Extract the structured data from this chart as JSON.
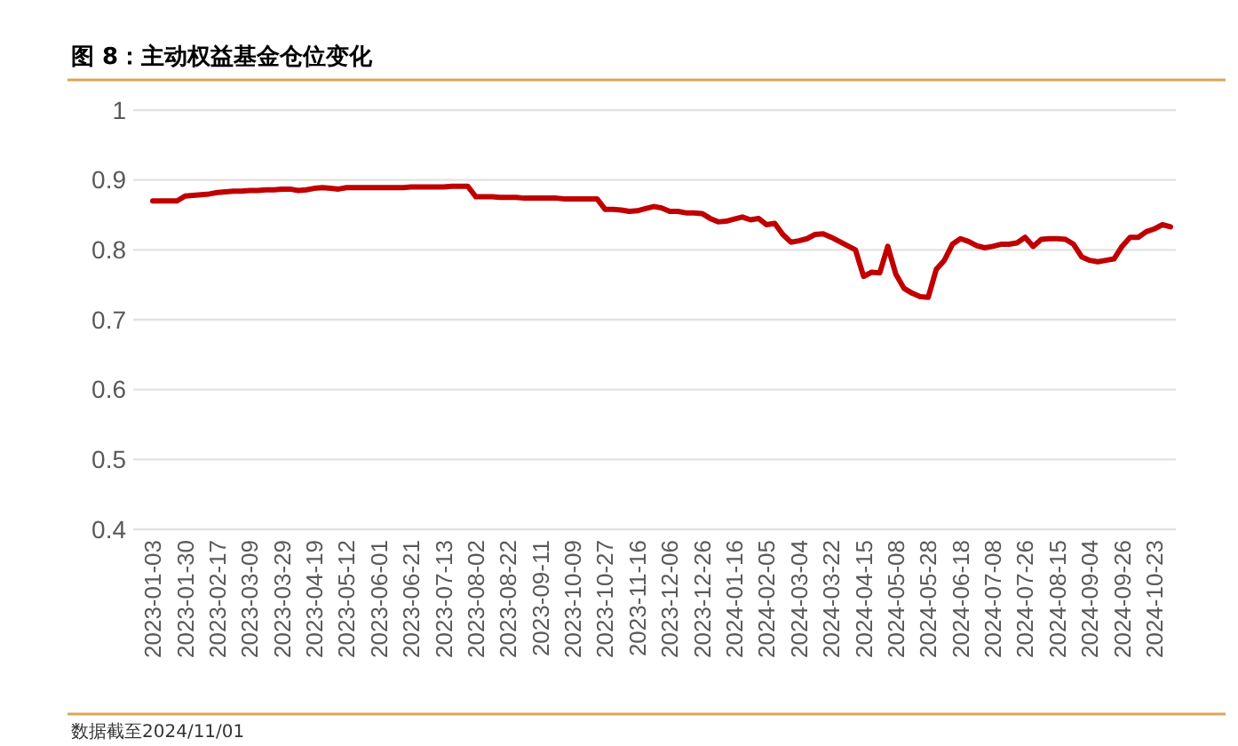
{
  "chart_data": {
    "type": "line",
    "title": "图 8：主动权益基金仓位变化",
    "annotations": [
      "数据截至2024/11/01"
    ],
    "categories": [
      "2023-01-03",
      null,
      null,
      null,
      "2023-01-30",
      null,
      null,
      null,
      "2023-02-17",
      null,
      null,
      null,
      "2023-03-09",
      null,
      null,
      null,
      "2023-03-29",
      null,
      null,
      null,
      "2023-04-19",
      null,
      null,
      null,
      "2023-05-12",
      null,
      null,
      null,
      "2023-06-01",
      null,
      null,
      null,
      "2023-06-21",
      null,
      null,
      null,
      "2023-07-13",
      null,
      null,
      null,
      "2023-08-02",
      null,
      null,
      null,
      "2023-08-22",
      null,
      null,
      null,
      "2023-09-11",
      null,
      null,
      null,
      "2023-10-09",
      null,
      null,
      null,
      "2023-10-27",
      null,
      null,
      null,
      "2023-11-16",
      null,
      null,
      null,
      "2023-12-06",
      null,
      null,
      null,
      "2023-12-26",
      null,
      null,
      null,
      "2024-01-16",
      null,
      null,
      null,
      "2024-02-05",
      null,
      null,
      null,
      "2024-03-04",
      null,
      null,
      null,
      "2024-03-22",
      null,
      null,
      null,
      "2024-04-15",
      null,
      null,
      null,
      "2024-05-08",
      null,
      null,
      null,
      "2024-05-28",
      null,
      null,
      null,
      "2024-06-18",
      null,
      null,
      null,
      "2024-07-08",
      null,
      null,
      null,
      "2024-07-26",
      null,
      null,
      null,
      "2024-08-15",
      null,
      null,
      null,
      "2024-09-04",
      null,
      null,
      null,
      "2024-09-26",
      null,
      null,
      null,
      "2024-10-23",
      null,
      null
    ],
    "series": [
      {
        "color": "#c00000",
        "values": [
          0.87,
          0.87,
          0.87,
          0.87,
          0.877,
          0.878,
          0.879,
          0.88,
          0.882,
          0.883,
          0.884,
          0.884,
          0.885,
          0.885,
          0.886,
          0.886,
          0.887,
          0.887,
          0.885,
          0.886,
          0.888,
          0.889,
          0.888,
          0.887,
          0.889,
          0.889,
          0.889,
          0.889,
          0.889,
          0.889,
          0.889,
          0.889,
          0.89,
          0.89,
          0.89,
          0.89,
          0.89,
          0.891,
          0.891,
          0.891,
          0.876,
          0.876,
          0.876,
          0.875,
          0.875,
          0.875,
          0.874,
          0.874,
          0.874,
          0.874,
          0.874,
          0.873,
          0.873,
          0.873,
          0.873,
          0.873,
          0.858,
          0.858,
          0.857,
          0.855,
          0.856,
          0.859,
          0.862,
          0.86,
          0.855,
          0.855,
          0.853,
          0.853,
          0.852,
          0.845,
          0.84,
          0.841,
          0.844,
          0.847,
          0.843,
          0.845,
          0.836,
          0.838,
          0.822,
          0.811,
          0.813,
          0.816,
          0.822,
          0.823,
          0.818,
          0.812,
          0.806,
          0.8,
          0.762,
          0.768,
          0.767,
          0.805,
          0.765,
          0.745,
          0.738,
          0.733,
          0.732,
          0.772,
          0.785,
          0.808,
          0.816,
          0.812,
          0.806,
          0.803,
          0.805,
          0.808,
          0.808,
          0.81,
          0.818,
          0.805,
          0.815,
          0.816,
          0.816,
          0.815,
          0.808,
          0.79,
          0.785,
          0.783,
          0.785,
          0.787,
          0.805,
          0.818,
          0.818,
          0.826,
          0.83,
          0.836,
          0.833
        ]
      }
    ],
    "ylim": [
      0.4,
      1
    ],
    "yticks": [
      0.4,
      0.5,
      0.6,
      0.7,
      0.8,
      0.9,
      1
    ],
    "grid": "y",
    "marker": "none",
    "line_style": "solid"
  }
}
